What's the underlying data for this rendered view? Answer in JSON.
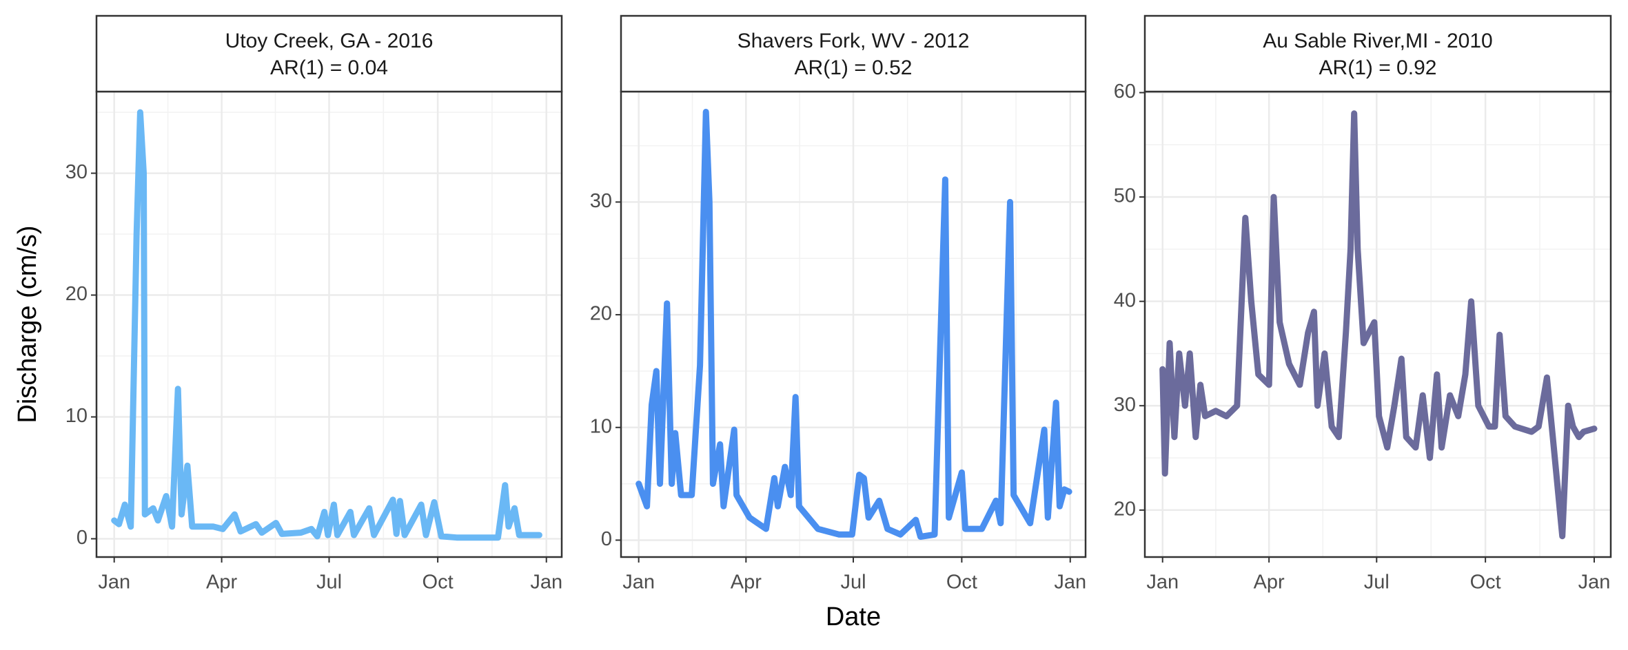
{
  "x_label": "Date",
  "y_label": "Discharge (cm/s)",
  "chart_data": [
    {
      "type": "line",
      "title": "Utoy Creek, GA - 2016",
      "subtitle": "AR(1) = 0.04",
      "color": "#6ab8f5",
      "grid": true,
      "xlim": [
        -14,
        380
      ],
      "xticks": [
        {
          "value": 1,
          "label": "Jan"
        },
        {
          "value": 92,
          "label": "Apr"
        },
        {
          "value": 183,
          "label": "Jul"
        },
        {
          "value": 275,
          "label": "Oct"
        },
        {
          "value": 367,
          "label": "Jan"
        }
      ],
      "ylim": [
        -1.5,
        36.7
      ],
      "yticks": [
        0,
        10,
        20,
        30
      ],
      "x": [
        1,
        5,
        10,
        15,
        20,
        23,
        26,
        27,
        34,
        38,
        45,
        50,
        55,
        58,
        63,
        67,
        85,
        93,
        103,
        108,
        121,
        126,
        138,
        143,
        159,
        168,
        173,
        179,
        182,
        187,
        190,
        201,
        204,
        217,
        221,
        237,
        240,
        243,
        247,
        261,
        265,
        272,
        278,
        291,
        326,
        332,
        335,
        340,
        344,
        361
      ],
      "values": [
        1.5,
        1.2,
        2.8,
        1,
        25,
        35,
        30,
        2,
        2.5,
        1.5,
        3.5,
        1,
        12.3,
        2,
        6,
        1,
        1,
        0.8,
        2,
        0.6,
        1.2,
        0.5,
        1.3,
        0.4,
        0.5,
        0.8,
        0.2,
        2.2,
        0.3,
        2.8,
        0.3,
        2.2,
        0.3,
        2.5,
        0.3,
        3.2,
        0.4,
        3.1,
        0.3,
        2.8,
        0.3,
        3,
        0.2,
        0.1,
        0.1,
        4.4,
        1,
        2.5,
        0.3,
        0.3
      ]
    },
    {
      "type": "line",
      "title": "Shavers Fork, WV - 2012",
      "subtitle": "AR(1) = 0.52",
      "color": "#4a8ff0",
      "grid": true,
      "xlim": [
        -14,
        380
      ],
      "xticks": [
        {
          "value": 1,
          "label": "Jan"
        },
        {
          "value": 92,
          "label": "Apr"
        },
        {
          "value": 183,
          "label": "Jul"
        },
        {
          "value": 275,
          "label": "Oct"
        },
        {
          "value": 367,
          "label": "Jan"
        }
      ],
      "ylim": [
        -1.5,
        39.8
      ],
      "yticks": [
        0,
        10,
        20,
        30
      ],
      "x": [
        1,
        8,
        12,
        16,
        19,
        25,
        29,
        32,
        37,
        46,
        53,
        58,
        61,
        64,
        70,
        73,
        82,
        84,
        95,
        109,
        116,
        119,
        125,
        130,
        134,
        137,
        153,
        171,
        182,
        188,
        192,
        196,
        205,
        212,
        223,
        236,
        240,
        252,
        261,
        264,
        275,
        278,
        292,
        304,
        308,
        316,
        319,
        333,
        345,
        348,
        355,
        358,
        362,
        366
      ],
      "values": [
        5,
        3,
        12,
        15,
        5,
        21,
        5,
        9.5,
        4,
        4,
        15.5,
        38,
        30,
        5,
        8.5,
        3,
        9.8,
        4,
        2,
        1,
        5.5,
        3,
        6.5,
        4,
        12.7,
        3,
        1,
        0.5,
        0.5,
        5.8,
        5.5,
        2,
        3.5,
        1,
        0.5,
        1.8,
        0.3,
        0.5,
        32,
        2,
        6,
        1,
        1,
        3.5,
        1.5,
        30,
        4,
        1.5,
        9.8,
        2,
        12.2,
        3,
        4.5,
        4.3
      ]
    },
    {
      "type": "line",
      "title": "Au Sable River,MI - 2010",
      "subtitle": "AR(1) = 0.92",
      "color": "#6b6b9c",
      "grid": true,
      "xlim": [
        -14,
        380
      ],
      "xticks": [
        {
          "value": 1,
          "label": "Jan"
        },
        {
          "value": 91,
          "label": "Apr"
        },
        {
          "value": 182,
          "label": "Jul"
        },
        {
          "value": 274,
          "label": "Oct"
        },
        {
          "value": 366,
          "label": "Jan"
        }
      ],
      "ylim": [
        15.5,
        60.1
      ],
      "yticks": [
        20,
        30,
        40,
        50,
        60
      ],
      "x": [
        1,
        3,
        7,
        11,
        15,
        20,
        24,
        29,
        33,
        37,
        46,
        55,
        64,
        71,
        76,
        82,
        91,
        95,
        100,
        108,
        117,
        124,
        129,
        132,
        138,
        144,
        150,
        156,
        160,
        163,
        166,
        171,
        180,
        184,
        191,
        197,
        203,
        207,
        215,
        221,
        227,
        233,
        237,
        244,
        251,
        257,
        262,
        268,
        277,
        282,
        286,
        291,
        299,
        313,
        319,
        326,
        331,
        339,
        344,
        348,
        353,
        357,
        366
      ],
      "values": [
        33.5,
        23.5,
        36,
        27,
        35,
        30,
        35,
        27,
        32,
        29,
        29.5,
        29,
        30,
        48,
        40,
        33,
        32,
        50,
        38,
        34,
        32,
        37,
        39,
        30,
        35,
        28,
        27,
        37,
        45,
        58,
        45,
        36,
        38,
        29,
        26,
        30,
        34.5,
        27,
        26,
        31,
        25,
        33,
        26,
        31,
        29,
        33,
        40,
        30,
        28,
        28,
        36.8,
        29,
        28,
        27.5,
        28,
        32.7,
        27,
        17.5,
        30,
        28,
        27,
        27.5,
        27.8
      ]
    }
  ]
}
